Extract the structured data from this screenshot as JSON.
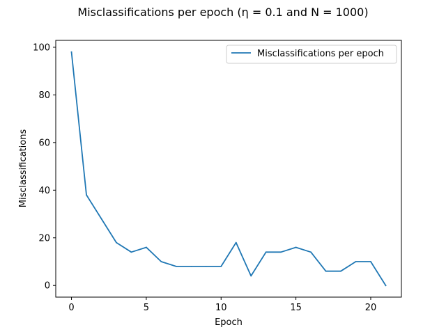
{
  "chart_data": {
    "type": "line",
    "title": "Misclassifications per epoch (η = 0.1 and N = 1000)",
    "xlabel": "Epoch",
    "ylabel": "Misclassifications",
    "xlim": [
      -1.05,
      22.05
    ],
    "ylim": [
      -4.9,
      102.9
    ],
    "xticks": [
      0,
      5,
      10,
      15,
      20
    ],
    "yticks": [
      0,
      20,
      40,
      60,
      80,
      100
    ],
    "legend_position": "top-right",
    "grid": false,
    "series": [
      {
        "name": "Misclassifications per epoch",
        "color": "#1f77b4",
        "x": [
          0,
          1,
          2,
          3,
          4,
          5,
          6,
          7,
          8,
          9,
          10,
          11,
          12,
          13,
          14,
          15,
          16,
          17,
          18,
          19,
          20,
          21
        ],
        "y": [
          98,
          38,
          28,
          18,
          14,
          16,
          10,
          8,
          8,
          8,
          8,
          18,
          4,
          14,
          14,
          16,
          14,
          6,
          6,
          10,
          10,
          0
        ]
      }
    ]
  }
}
